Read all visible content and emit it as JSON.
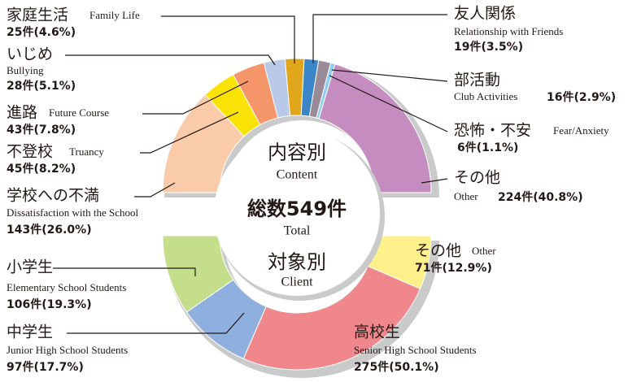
{
  "chart_data": [
    {
      "type": "half-donut",
      "side": "top",
      "title": "内容別",
      "subtitle": "Content",
      "categories": [
        "学校への不満",
        "不登校",
        "進路",
        "いじめ",
        "家庭生活",
        "友人関係",
        "部活動",
        "恐怖・不安",
        "その他"
      ],
      "categories_en": [
        "Dissatisfaction with the School",
        "Truancy",
        "Future Course",
        "Bullying",
        "Family Life",
        "Relationship with Friends",
        "Club Activities",
        "Fear/Anxiety",
        "Other"
      ],
      "values": [
        143,
        45,
        43,
        28,
        25,
        19,
        16,
        6,
        224
      ],
      "value_labels": [
        "143件(26.0%)",
        "45件(8.2%)",
        "43件(7.8%)",
        "28件(5.1%)",
        "25件(4.6%)",
        "19件(3.5%)",
        "16件(2.9%)",
        "6件(1.1%)",
        "224件(40.8%)"
      ],
      "colors": [
        "#f9cba8",
        "#fbe205",
        "#f4956a",
        "#b9c9e8",
        "#dfa719",
        "#3a86c8",
        "#9a8b98",
        "#8dd0ef",
        "#c58cc0"
      ]
    },
    {
      "type": "half-donut",
      "side": "bottom",
      "title": "対象別",
      "subtitle": "Client",
      "categories": [
        "小学生",
        "中学生",
        "高校生",
        "その他"
      ],
      "categories_en": [
        "Elementary School Students",
        "Junior High School Students",
        "Senior High School Students",
        "Other"
      ],
      "values": [
        106,
        97,
        275,
        71
      ],
      "value_labels": [
        "106件(19.3%)",
        "97件(17.7%)",
        "275件(50.1%)",
        "71件(12.9%)"
      ],
      "colors": [
        "#c5de8c",
        "#8fb0de",
        "#f0878c",
        "#fff08c"
      ]
    },
    {
      "type": "center",
      "title": "総数549件",
      "subtitle": "Total"
    }
  ]
}
